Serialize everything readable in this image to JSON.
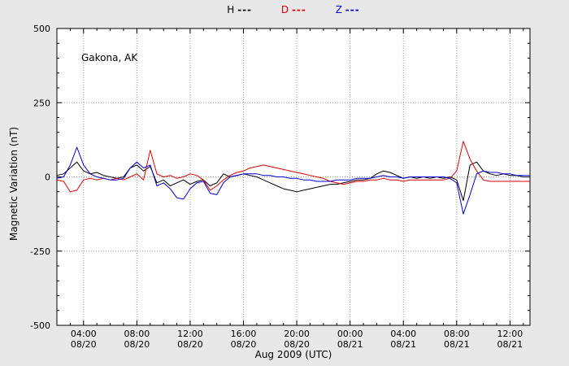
{
  "chart_data": {
    "type": "line",
    "title": "",
    "xlabel": "Aug 2009 (UTC)",
    "ylabel": "Magnetic Variation (nT)",
    "annotation": "Gakona, AK",
    "xlim": [
      2,
      37.5
    ],
    "ylim": [
      -500,
      500
    ],
    "grid": true,
    "legend_position": "top-center",
    "yticks": [
      {
        "value": 500,
        "label": "500"
      },
      {
        "value": 250,
        "label": "250"
      },
      {
        "value": 0,
        "label": "0"
      },
      {
        "value": -250,
        "label": "-250"
      },
      {
        "value": -500,
        "label": "-500"
      }
    ],
    "xticks": [
      {
        "value": 4,
        "time": "04:00",
        "date": "08/20"
      },
      {
        "value": 8,
        "time": "08:00",
        "date": "08/20"
      },
      {
        "value": 12,
        "time": "12:00",
        "date": "08/20"
      },
      {
        "value": 16,
        "time": "16:00",
        "date": "08/20"
      },
      {
        "value": 20,
        "time": "20:00",
        "date": "08/20"
      },
      {
        "value": 24,
        "time": "00:00",
        "date": "08/21"
      },
      {
        "value": 28,
        "time": "04:00",
        "date": "08/21"
      },
      {
        "value": 32,
        "time": "08:00",
        "date": "08/21"
      },
      {
        "value": 36,
        "time": "12:00",
        "date": "08/21"
      }
    ],
    "x": [
      2,
      2.5,
      3,
      3.5,
      4,
      4.5,
      5,
      5.5,
      6,
      6.5,
      7,
      7.5,
      8,
      8.5,
      9,
      9.5,
      10,
      10.5,
      11,
      11.5,
      12,
      12.5,
      13,
      13.5,
      14,
      14.5,
      15,
      15.5,
      16,
      16.5,
      17,
      17.5,
      18,
      18.5,
      19,
      19.5,
      20,
      20.5,
      21,
      21.5,
      22,
      22.5,
      23,
      23.5,
      24,
      24.5,
      25,
      25.5,
      26,
      26.5,
      27,
      27.5,
      28,
      28.5,
      29,
      29.5,
      30,
      30.5,
      31,
      31.5,
      32,
      32.5,
      33,
      33.5,
      34,
      34.5,
      35,
      35.5,
      36,
      36.5,
      37,
      37.5
    ],
    "series": [
      {
        "name": "H",
        "legend_dash": "---",
        "color": "#000000",
        "values": [
          5,
          10,
          30,
          50,
          20,
          10,
          15,
          5,
          0,
          -5,
          0,
          30,
          40,
          20,
          35,
          -20,
          -10,
          -30,
          -20,
          -10,
          -25,
          -15,
          -10,
          -30,
          -20,
          10,
          0,
          5,
          10,
          5,
          0,
          -10,
          -20,
          -30,
          -40,
          -45,
          -50,
          -45,
          -40,
          -35,
          -30,
          -25,
          -25,
          -20,
          -15,
          -10,
          -10,
          -5,
          10,
          20,
          15,
          5,
          -5,
          0,
          -5,
          0,
          -5,
          0,
          -5,
          0,
          -10,
          -80,
          40,
          50,
          20,
          10,
          5,
          10,
          5,
          5,
          0,
          0
        ]
      },
      {
        "name": "D",
        "legend_dash": "---",
        "color": "#dd0000",
        "values": [
          -10,
          -15,
          -50,
          -45,
          -10,
          -5,
          -10,
          -5,
          -10,
          -5,
          -10,
          0,
          10,
          -10,
          90,
          10,
          0,
          5,
          -5,
          0,
          10,
          5,
          -10,
          -45,
          -30,
          -10,
          5,
          15,
          20,
          30,
          35,
          40,
          35,
          30,
          25,
          20,
          15,
          10,
          5,
          0,
          -5,
          -15,
          -20,
          -25,
          -20,
          -15,
          -15,
          -10,
          -10,
          -5,
          -10,
          -10,
          -15,
          -10,
          -10,
          -10,
          -10,
          -10,
          -10,
          -5,
          20,
          120,
          60,
          20,
          -10,
          -15,
          -15,
          -15,
          -15,
          -15,
          -15,
          -15
        ]
      },
      {
        "name": "Z",
        "legend_dash": "---",
        "color": "#0000dd",
        "values": [
          -5,
          0,
          40,
          100,
          40,
          10,
          0,
          -5,
          -10,
          -10,
          -5,
          30,
          50,
          30,
          40,
          -30,
          -20,
          -40,
          -70,
          -75,
          -40,
          -20,
          -15,
          -55,
          -60,
          -20,
          0,
          5,
          10,
          10,
          10,
          5,
          5,
          0,
          0,
          -5,
          -5,
          -10,
          -10,
          -15,
          -15,
          -15,
          -10,
          -10,
          -10,
          -5,
          -5,
          -5,
          0,
          5,
          0,
          0,
          -5,
          0,
          0,
          0,
          0,
          0,
          0,
          -5,
          -20,
          -125,
          -60,
          10,
          20,
          15,
          15,
          10,
          10,
          5,
          5,
          5
        ]
      }
    ]
  }
}
